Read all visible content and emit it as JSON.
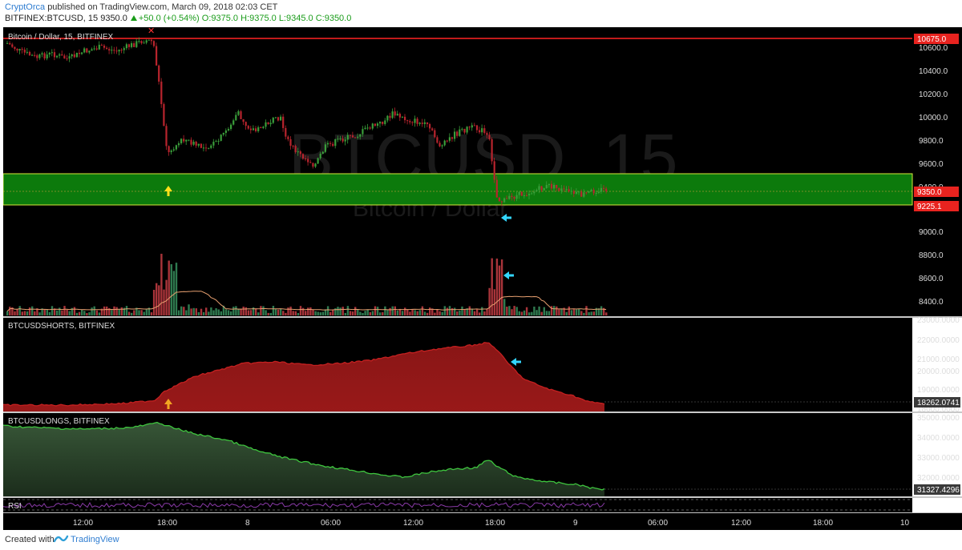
{
  "header": {
    "author": "CryptOrca",
    "published_text": "published on TradingView.com, March 09, 2018 02:03 CET",
    "symbol": "BITFINEX:BTCUSD, 15",
    "price": "9350.0",
    "change": "+50.0 (+0.54%)",
    "open": "O:9375.0",
    "high": "H:9375.0",
    "low": "L:9345.0",
    "close": "C:9350.0"
  },
  "main_pane": {
    "legend": "Bitcoin / Dollar, 15, BITFINEX",
    "watermark_symbol": "BTCUSD, 15",
    "watermark_name": "Bitcoin / Dollar",
    "price_ticks": [
      "10600.0",
      "10400.0",
      "10200.0",
      "10000.0",
      "9800.0",
      "9600.0",
      "9400.0",
      "9000.0",
      "8800.0",
      "8600.0",
      "8400.0"
    ],
    "resistance_label": "10675.0",
    "current_label": "9350.0",
    "support_label": "9225.1"
  },
  "shorts_pane": {
    "legend": "BTCUSDSHORTS, BITFINEX",
    "ticks": [
      "23000.0000",
      "22000.0000",
      "21000.0000",
      "20000.0000",
      "19000.0000",
      "18000.0000"
    ],
    "last_label": "18262.0741"
  },
  "longs_pane": {
    "legend": "BTCUSDLONGS, BITFINEX",
    "ticks": [
      "35000.0000",
      "34000.0000",
      "33000.0000",
      "32000.0000"
    ],
    "last_label": "31327.4296"
  },
  "rsi_pane": {
    "legend": "RSI"
  },
  "time_axis": {
    "labels": [
      "12:00",
      "18:00",
      "8",
      "06:00",
      "12:00",
      "18:00",
      "9",
      "06:00",
      "12:00",
      "18:00",
      "10"
    ]
  },
  "colors": {
    "up": "#3a9d3a",
    "down": "#b8242d",
    "zone": "#0d7d0d",
    "resistance": "#ff2222",
    "arrow_yellow": "#ffe01a",
    "arrow_cyan": "#33d6ff",
    "shorts_line": "#b01c1c",
    "longs_line": "#3ec43e",
    "rsi_line": "#8a3aa8"
  },
  "footer": {
    "created": "Created with",
    "brand": "TradingView"
  }
}
